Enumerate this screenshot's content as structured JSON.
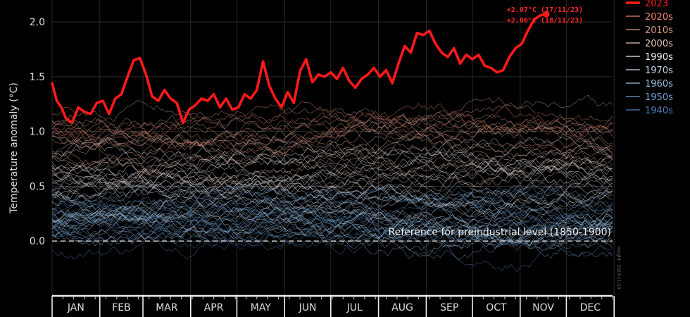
{
  "chart_data": {
    "type": "line",
    "title": "",
    "xlabel": "",
    "ylabel": "Temperature anomaly (°C)",
    "ylim": [
      -0.5,
      2.2
    ],
    "yticks": [
      "0.0",
      "0.5",
      "1.0",
      "1.5",
      "2.0"
    ],
    "ytick_values": [
      0.0,
      0.5,
      1.0,
      1.5,
      2.0
    ],
    "grid": true,
    "legend_placement": "top-right",
    "months": [
      "JAN",
      "FEB",
      "MAR",
      "APR",
      "MAY",
      "JUN",
      "JUL",
      "AUG",
      "SEP",
      "OCT",
      "NOV",
      "DEC"
    ],
    "legend": [
      {
        "label": "2023",
        "color": "#ff1a1a",
        "highlight": true
      },
      {
        "label": "2020s",
        "color": "#f0856a"
      },
      {
        "label": "2010s",
        "color": "#d89a86"
      },
      {
        "label": "2000s",
        "color": "#e8c4b8"
      },
      {
        "label": "1990s",
        "color": "#f2f2f2"
      },
      {
        "label": "1970s",
        "color": "#c4d8ec"
      },
      {
        "label": "1960s",
        "color": "#9cc2e4"
      },
      {
        "label": "1950s",
        "color": "#6fa0cf"
      },
      {
        "label": "1940s",
        "color": "#4f7fb8"
      }
    ],
    "series_2023": {
      "name": "2023",
      "color": "#ff1a1a",
      "x_day": [
        1,
        4,
        7,
        10,
        14,
        18,
        22,
        26,
        30,
        34,
        38,
        42,
        46,
        50,
        54,
        58,
        62,
        66,
        70,
        74,
        78,
        82,
        86,
        90,
        94,
        98,
        102,
        106,
        110,
        114,
        118,
        122,
        126,
        130,
        134,
        138,
        142,
        146,
        150,
        154,
        158,
        162,
        166,
        170,
        174,
        178,
        182,
        186,
        190,
        194,
        198,
        202,
        206,
        210,
        214,
        218,
        222,
        226,
        230,
        234,
        238,
        242,
        246,
        250,
        254,
        258,
        262,
        266,
        270,
        274,
        278,
        282,
        286,
        290,
        294,
        298,
        302,
        306,
        310,
        314,
        318,
        322
      ],
      "y": [
        1.44,
        1.28,
        1.22,
        1.12,
        1.08,
        1.22,
        1.18,
        1.16,
        1.26,
        1.28,
        1.16,
        1.3,
        1.34,
        1.5,
        1.65,
        1.67,
        1.52,
        1.32,
        1.28,
        1.38,
        1.3,
        1.26,
        1.08,
        1.2,
        1.24,
        1.3,
        1.28,
        1.34,
        1.22,
        1.3,
        1.2,
        1.22,
        1.34,
        1.3,
        1.38,
        1.64,
        1.42,
        1.3,
        1.22,
        1.36,
        1.26,
        1.55,
        1.66,
        1.45,
        1.52,
        1.5,
        1.54,
        1.48,
        1.58,
        1.46,
        1.4,
        1.48,
        1.52,
        1.58,
        1.5,
        1.56,
        1.44,
        1.62,
        1.78,
        1.72,
        1.9,
        1.88,
        1.92,
        1.8,
        1.72,
        1.68,
        1.76,
        1.62,
        1.7,
        1.66,
        1.7,
        1.6,
        1.58,
        1.54,
        1.56,
        1.68,
        1.76,
        1.8,
        1.92,
        2.02,
        2.06,
        2.07
      ]
    },
    "annotations": [
      {
        "text": "+2.07°C (17/11/23)",
        "day": 322,
        "value": 2.07
      },
      {
        "text": "+2.06°C (18/11/23)",
        "day": 323,
        "value": 2.06
      }
    ],
    "reference_line": {
      "value": 0.0,
      "label": "Reference for preindustrial level (1850-1900)"
    },
    "credit": "insight · 2023-11-20",
    "decade_bands": [
      {
        "decade": "1940s",
        "count": 10,
        "center": 0.12,
        "color": "#4f7fb8"
      },
      {
        "decade": "1950s",
        "count": 10,
        "center": 0.16,
        "color": "#6fa0cf"
      },
      {
        "decade": "1960s",
        "count": 10,
        "center": 0.2,
        "color": "#9cc2e4"
      },
      {
        "decade": "1970s",
        "count": 10,
        "center": 0.3,
        "color": "#c4d8ec"
      },
      {
        "decade": "1990s",
        "count": 10,
        "center": 0.58,
        "color": "#f2f2f2"
      },
      {
        "decade": "2000s",
        "count": 10,
        "center": 0.78,
        "color": "#e8c4b8"
      },
      {
        "decade": "2010s",
        "count": 10,
        "center": 0.98,
        "color": "#d89a86"
      },
      {
        "decade": "2020s",
        "count": 3,
        "center": 1.15,
        "color": "#f0856a"
      }
    ]
  }
}
